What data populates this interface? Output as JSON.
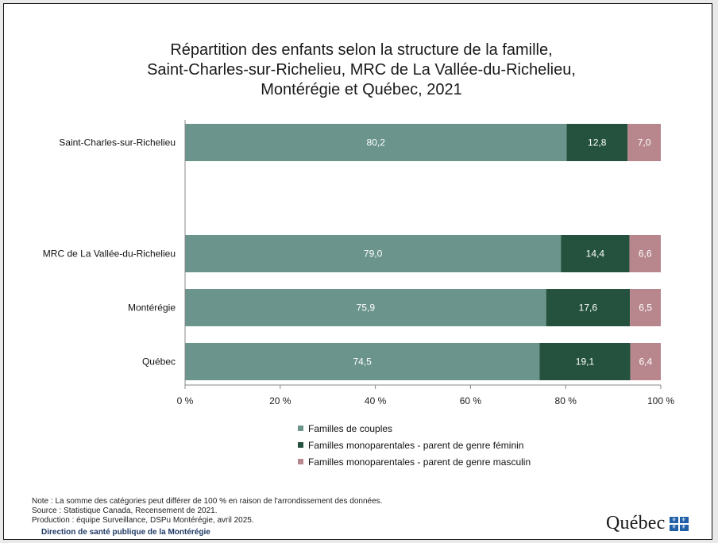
{
  "chart_data": {
    "type": "bar",
    "orientation": "horizontal",
    "stacked": true,
    "title_lines": [
      "Répartition des enfants selon la structure de la famille,",
      "Saint-Charles-sur-Richelieu, MRC de La Vallée-du-Richelieu,",
      "Montérégie et Québec, 2021"
    ],
    "categories": [
      "Saint-Charles-sur-Richelieu",
      "MRC de La Vallée-du-Richelieu",
      "Montérégie",
      "Québec"
    ],
    "series": [
      {
        "name": "Familles de couples",
        "values": [
          80.2,
          79.0,
          75.9,
          74.5
        ],
        "labels": [
          "80,2",
          "79,0",
          "75,9",
          "74,5"
        ],
        "color": "#6b948c"
      },
      {
        "name": "Familles monoparentales - parent de genre féminin",
        "values": [
          12.8,
          14.4,
          17.6,
          19.1
        ],
        "labels": [
          "12,8",
          "14,4",
          "17,6",
          "19,1"
        ],
        "color": "#24523e"
      },
      {
        "name": "Familles monoparentales - parent de genre masculin",
        "values": [
          7.0,
          6.6,
          6.5,
          6.4
        ],
        "labels": [
          "7,0",
          "6,6",
          "6,5",
          "6,4"
        ],
        "color": "#b8878e"
      }
    ],
    "xlim": [
      0,
      100
    ],
    "x_ticks": [
      {
        "value": 0,
        "label": "0 %"
      },
      {
        "value": 20,
        "label": "20 %"
      },
      {
        "value": 40,
        "label": "40 %"
      },
      {
        "value": 60,
        "label": "60 %"
      },
      {
        "value": 80,
        "label": "80 %"
      },
      {
        "value": 100,
        "label": "100 %"
      }
    ],
    "grid": false,
    "legend_position": "bottom"
  },
  "footer": {
    "note": "Note : La somme des catégories peut différer de 100 % en raison de l'arrondissement des données.",
    "source": "Source : Statistique Canada, Recensement de 2021.",
    "production": "Production : équipe Surveillance, DSPu Montérégie, avril 2025.",
    "organization": "Direction de santé publique de la Montérégie"
  },
  "logo": {
    "text": "Québec"
  }
}
